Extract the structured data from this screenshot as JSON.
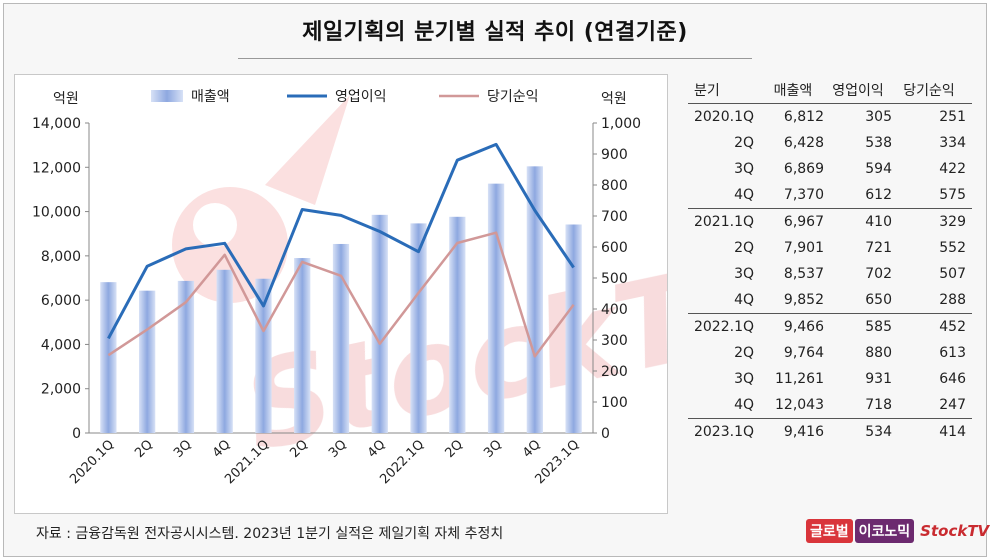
{
  "title": "제일기획의 분기별 실적 추이 (연결기준)",
  "source": "자료 : 금융감독원 전자공시시스템. 2023년 1분기 실적은 제일기획 자체 추정치",
  "logos": {
    "part1": "글로벌",
    "part2": "이코노믹",
    "part3": "StockTV"
  },
  "colors": {
    "bar": "#a9bde8",
    "operating": "#2a6cb8",
    "net": "#d19898"
  },
  "chart_data": {
    "type": "bar",
    "categories": [
      "2020.1Q",
      "2Q",
      "3Q",
      "4Q",
      "2021.1Q",
      "2Q",
      "3Q",
      "4Q",
      "2022.1Q",
      "2Q",
      "3Q",
      "4Q",
      "2023.1Q"
    ],
    "left_unit": "억원",
    "right_unit": "억원",
    "left_ylim": [
      0,
      14000
    ],
    "right_ylim": [
      0,
      1000
    ],
    "left_ticks": [
      "0",
      "2,000",
      "4,000",
      "6,000",
      "8,000",
      "10,000",
      "12,000",
      "14,000"
    ],
    "right_ticks": [
      "0",
      "100",
      "200",
      "300",
      "400",
      "500",
      "600",
      "700",
      "800",
      "900",
      "1,000"
    ],
    "legend": [
      "매출액",
      "영업이익",
      "당기순익"
    ],
    "legend_position": "top",
    "grid": false,
    "series": [
      {
        "name": "매출액",
        "type": "bar",
        "axis": "left",
        "values": [
          6812,
          6428,
          6869,
          7370,
          6967,
          7901,
          8537,
          9852,
          9466,
          9764,
          11261,
          12043,
          9416
        ]
      },
      {
        "name": "영업이익",
        "type": "line",
        "axis": "right",
        "values": [
          305,
          538,
          594,
          612,
          410,
          721,
          702,
          650,
          585,
          880,
          931,
          718,
          534
        ]
      },
      {
        "name": "당기순익",
        "type": "line",
        "axis": "right",
        "values": [
          251,
          334,
          422,
          575,
          329,
          552,
          507,
          288,
          452,
          613,
          646,
          247,
          414
        ]
      }
    ]
  },
  "table": {
    "headers": [
      "분기",
      "매출액",
      "영업이익",
      "당기순익"
    ],
    "rows": [
      [
        "2020.1Q",
        "6,812",
        "305",
        "251"
      ],
      [
        "2Q",
        "6,428",
        "538",
        "334"
      ],
      [
        "3Q",
        "6,869",
        "594",
        "422"
      ],
      [
        "4Q",
        "7,370",
        "612",
        "575"
      ],
      [
        "2021.1Q",
        "6,967",
        "410",
        "329"
      ],
      [
        "2Q",
        "7,901",
        "721",
        "552"
      ],
      [
        "3Q",
        "8,537",
        "702",
        "507"
      ],
      [
        "4Q",
        "9,852",
        "650",
        "288"
      ],
      [
        "2022.1Q",
        "9,466",
        "585",
        "452"
      ],
      [
        "2Q",
        "9,764",
        "880",
        "613"
      ],
      [
        "3Q",
        "11,261",
        "931",
        "646"
      ],
      [
        "4Q",
        "12,043",
        "718",
        "247"
      ],
      [
        "2023.1Q",
        "9,416",
        "534",
        "414"
      ]
    ]
  }
}
